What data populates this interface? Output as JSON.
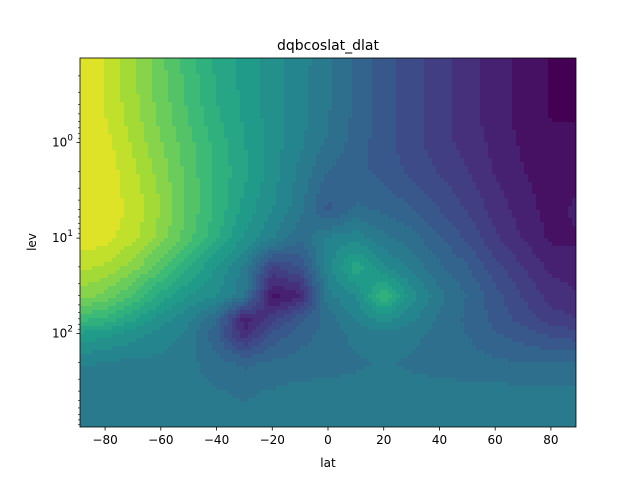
{
  "chart_data": {
    "type": "heatmap",
    "title": "dqbcoslat_dlat",
    "xlabel": "lat",
    "ylabel": "lev",
    "xlim": [
      -89,
      89
    ],
    "ylim": [
      0.13,
      950
    ],
    "y_scale": "log",
    "y_inverted": true,
    "colormap": "viridis",
    "grid": false,
    "legend": "none",
    "x_ticks": [
      {
        "value": -80,
        "label": "−80"
      },
      {
        "value": -60,
        "label": "−60"
      },
      {
        "value": -40,
        "label": "−40"
      },
      {
        "value": -20,
        "label": "−20"
      },
      {
        "value": 0,
        "label": "0"
      },
      {
        "value": 20,
        "label": "20"
      },
      {
        "value": 40,
        "label": "40"
      },
      {
        "value": 60,
        "label": "60"
      },
      {
        "value": 80,
        "label": "80"
      }
    ],
    "y_ticks": [
      {
        "value": 1,
        "base": "10",
        "exp": "0"
      },
      {
        "value": 10,
        "base": "10",
        "exp": "1"
      },
      {
        "value": 100,
        "base": "10",
        "exp": "2"
      }
    ],
    "field_lat": [
      -89,
      -80,
      -70,
      -60,
      -50,
      -40,
      -30,
      -20,
      -10,
      0,
      10,
      20,
      30,
      40,
      50,
      60,
      70,
      80,
      89
    ],
    "field_lev": [
      0.13,
      0.5,
      1,
      2,
      5,
      10,
      20,
      40,
      70,
      100,
      200,
      400,
      950
    ],
    "field_values": [
      [
        0.95,
        0.93,
        0.85,
        0.76,
        0.68,
        0.6,
        0.55,
        0.5,
        0.45,
        0.4,
        0.33,
        0.27,
        0.22,
        0.18,
        0.13,
        0.09,
        0.05,
        0.02,
        0.02
      ],
      [
        0.96,
        0.93,
        0.86,
        0.78,
        0.7,
        0.62,
        0.56,
        0.5,
        0.45,
        0.39,
        0.33,
        0.27,
        0.22,
        0.18,
        0.13,
        0.09,
        0.05,
        0.02,
        0.02
      ],
      [
        0.97,
        0.95,
        0.88,
        0.8,
        0.72,
        0.64,
        0.57,
        0.5,
        0.44,
        0.38,
        0.32,
        0.27,
        0.22,
        0.18,
        0.14,
        0.1,
        0.06,
        0.03,
        0.03
      ],
      [
        0.97,
        0.96,
        0.9,
        0.82,
        0.73,
        0.65,
        0.58,
        0.5,
        0.42,
        0.34,
        0.31,
        0.28,
        0.24,
        0.2,
        0.16,
        0.11,
        0.07,
        0.04,
        0.04
      ],
      [
        0.97,
        0.96,
        0.92,
        0.84,
        0.74,
        0.65,
        0.55,
        0.48,
        0.4,
        0.28,
        0.35,
        0.33,
        0.3,
        0.25,
        0.2,
        0.14,
        0.09,
        0.05,
        0.08
      ],
      [
        0.96,
        0.95,
        0.9,
        0.82,
        0.72,
        0.62,
        0.52,
        0.44,
        0.35,
        0.44,
        0.46,
        0.4,
        0.36,
        0.3,
        0.24,
        0.17,
        0.11,
        0.06,
        0.06
      ],
      [
        0.9,
        0.88,
        0.82,
        0.72,
        0.62,
        0.52,
        0.42,
        0.2,
        0.25,
        0.46,
        0.6,
        0.48,
        0.42,
        0.35,
        0.3,
        0.22,
        0.16,
        0.1,
        0.09
      ],
      [
        0.82,
        0.78,
        0.7,
        0.6,
        0.52,
        0.48,
        0.4,
        0.05,
        0.1,
        0.42,
        0.48,
        0.66,
        0.5,
        0.4,
        0.34,
        0.27,
        0.2,
        0.14,
        0.12
      ],
      [
        0.68,
        0.65,
        0.58,
        0.5,
        0.44,
        0.35,
        0.08,
        0.18,
        0.28,
        0.36,
        0.44,
        0.5,
        0.44,
        0.38,
        0.33,
        0.28,
        0.23,
        0.18,
        0.16
      ],
      [
        0.56,
        0.54,
        0.5,
        0.46,
        0.42,
        0.3,
        0.12,
        0.26,
        0.32,
        0.36,
        0.4,
        0.42,
        0.4,
        0.37,
        0.34,
        0.3,
        0.27,
        0.24,
        0.22
      ],
      [
        0.44,
        0.43,
        0.42,
        0.42,
        0.4,
        0.36,
        0.33,
        0.35,
        0.36,
        0.37,
        0.38,
        0.39,
        0.38,
        0.37,
        0.36,
        0.35,
        0.34,
        0.34,
        0.34
      ],
      [
        0.4,
        0.4,
        0.4,
        0.4,
        0.4,
        0.39,
        0.38,
        0.39,
        0.4,
        0.4,
        0.4,
        0.4,
        0.4,
        0.4,
        0.4,
        0.4,
        0.4,
        0.4,
        0.4
      ],
      [
        0.4,
        0.39,
        0.4,
        0.4,
        0.4,
        0.4,
        0.4,
        0.4,
        0.4,
        0.4,
        0.4,
        0.4,
        0.4,
        0.4,
        0.4,
        0.4,
        0.4,
        0.4,
        0.4
      ]
    ]
  }
}
